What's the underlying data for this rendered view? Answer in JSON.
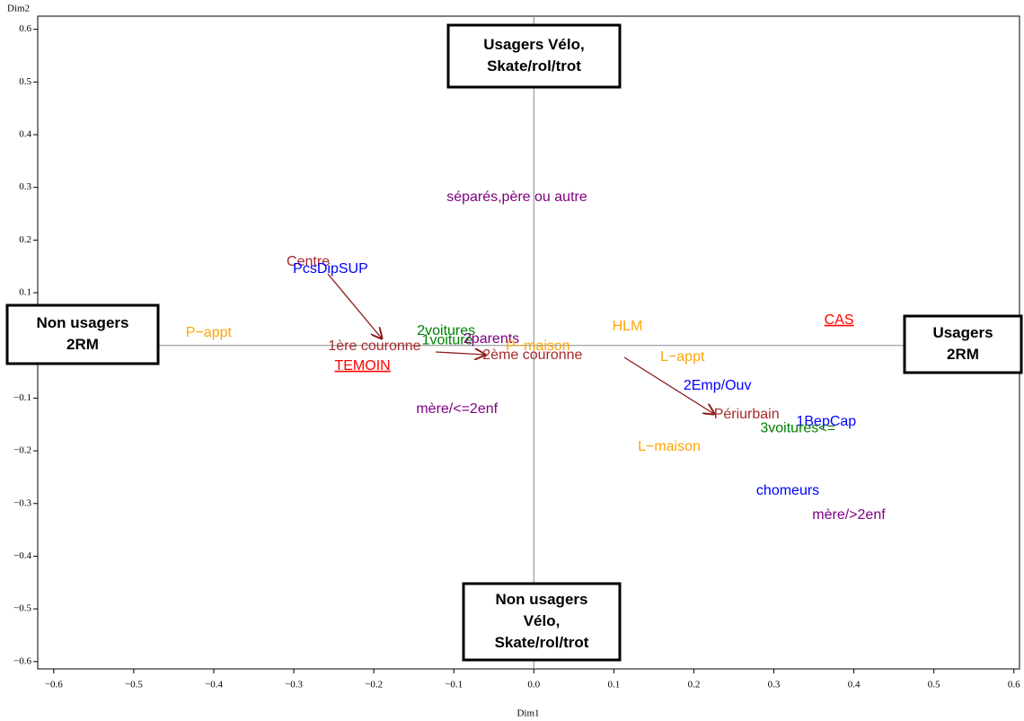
{
  "chart_data": {
    "type": "scatter",
    "x_label": "Dim1",
    "y_label": "Dim2",
    "xlim": [
      -0.62,
      0.607
    ],
    "ylim": [
      -0.614,
      0.625
    ],
    "xticks": [
      {
        "value": -0.6,
        "label": "−0.6"
      },
      {
        "value": -0.5,
        "label": "−0.5"
      },
      {
        "value": -0.4,
        "label": "−0.4"
      },
      {
        "value": -0.3,
        "label": "−0.3"
      },
      {
        "value": -0.2,
        "label": "−0.2"
      },
      {
        "value": -0.1,
        "label": "−0.1"
      },
      {
        "value": 0,
        "label": "0.0"
      },
      0.1,
      0.2,
      0.3,
      0.4,
      0.5,
      0.6
    ],
    "yticks": [
      {
        "value": -0.6,
        "label": "−0.6"
      },
      {
        "value": -0.5,
        "label": "−0.5"
      },
      {
        "value": -0.4,
        "label": "−0.4"
      },
      {
        "value": -0.3,
        "label": "−0.3"
      },
      {
        "value": -0.2,
        "label": "−0.2"
      },
      {
        "value": -0.1,
        "label": "−0.1"
      },
      {
        "value": 0,
        "label": "0.0"
      },
      0.1,
      0.2,
      0.3,
      0.4,
      0.5,
      0.6
    ],
    "points": [
      {
        "label": "séparés,père ou autre",
        "x": -0.109,
        "y": 0.281,
        "color": "#800080"
      },
      {
        "label": "Centre",
        "x": -0.309,
        "y": 0.158,
        "color": "#a52a2a"
      },
      {
        "label": "PcsDipSUP",
        "x": -0.301,
        "y": 0.145,
        "color": "#0000ff"
      },
      {
        "label": "P−appt",
        "x": -0.435,
        "y": 0.024,
        "color": "#ffa500"
      },
      {
        "label": "2voitures",
        "x": -0.146,
        "y": 0.027,
        "color": "#008000"
      },
      {
        "label": "1voiture",
        "x": -0.14,
        "y": 0.009,
        "color": "#008000"
      },
      {
        "label": "2parents",
        "x": -0.088,
        "y": 0.012,
        "color": "#800080"
      },
      {
        "label": "P−maison",
        "x": -0.035,
        "y": -0.002,
        "color": "#ffa500"
      },
      {
        "label": "1ère couronne",
        "x": -0.257,
        "y": -0.002,
        "color": "#a52a2a"
      },
      {
        "label": "2ème couronne",
        "x": -0.064,
        "y": -0.019,
        "color": "#a52a2a"
      },
      {
        "label": "HLM",
        "x": 0.098,
        "y": 0.036,
        "color": "#ffa500"
      },
      {
        "label": "CAS",
        "x": 0.363,
        "y": 0.048,
        "color": "#ff0000",
        "underline": true
      },
      {
        "label": "TEMOIN",
        "x": -0.249,
        "y": -0.039,
        "color": "#ff0000",
        "underline": true
      },
      {
        "label": "L−appt",
        "x": 0.158,
        "y": -0.022,
        "color": "#ffa500"
      },
      {
        "label": "2Emp/Ouv",
        "x": 0.187,
        "y": -0.077,
        "color": "#0000ff"
      },
      {
        "label": "mère/<=2enf",
        "x": -0.147,
        "y": -0.121,
        "color": "#800080"
      },
      {
        "label": "Périurbain",
        "x": 0.225,
        "y": -0.131,
        "color": "#a52a2a"
      },
      {
        "label": "1BepCap",
        "x": 0.328,
        "y": -0.145,
        "color": "#0000ff"
      },
      {
        "label": "3voitures<=",
        "x": 0.283,
        "y": -0.158,
        "color": "#008000"
      },
      {
        "label": "L−maison",
        "x": 0.13,
        "y": -0.193,
        "color": "#ffa500"
      },
      {
        "label": "chomeurs",
        "x": 0.278,
        "y": -0.276,
        "color": "#0000ff"
      },
      {
        "label": "mère/>2enf",
        "x": 0.348,
        "y": -0.322,
        "color": "#800080"
      }
    ],
    "annotations": [
      {
        "lines": [
          "Usagers Vélo,",
          "Skate/rol/trot"
        ]
      },
      {
        "lines": [
          "Non usagers",
          "2RM"
        ]
      },
      {
        "lines": [
          "Usagers",
          "2RM"
        ]
      },
      {
        "lines": [
          "Non usagers",
          "Vélo,",
          "Skate/rol/trot"
        ]
      }
    ]
  }
}
